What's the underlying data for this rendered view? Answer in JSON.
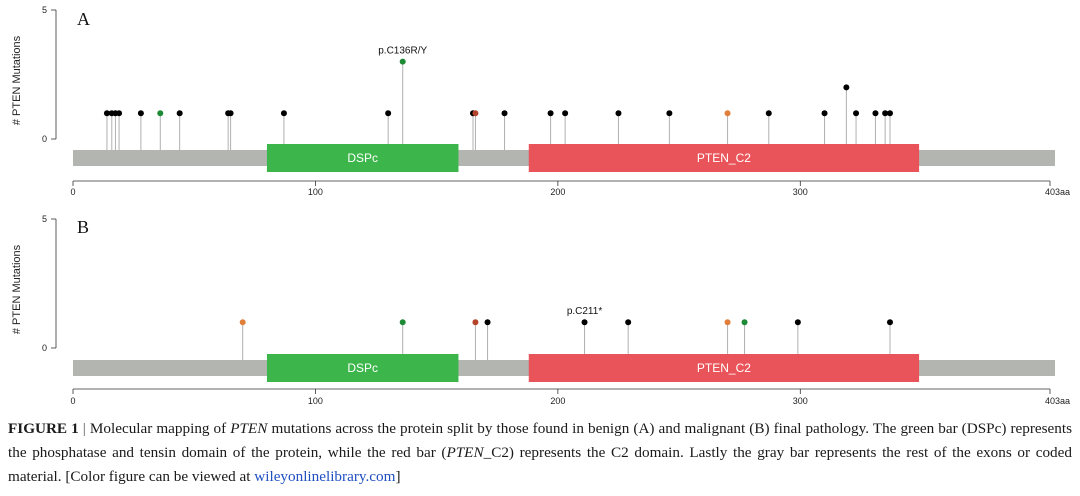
{
  "chart_data": [
    {
      "type": "lollipop",
      "panel": "A",
      "ylabel": "# PTEN Mutations",
      "yticks": [
        "0",
        "5"
      ],
      "ylim": [
        0,
        5
      ],
      "xlim": [
        0,
        403
      ],
      "xticks": [
        {
          "value": 0,
          "label": "0"
        },
        {
          "value": 100,
          "label": "100"
        },
        {
          "value": 200,
          "label": "200"
        },
        {
          "value": 300,
          "label": "300"
        },
        {
          "value": 403,
          "label": "403aa"
        }
      ],
      "domains": [
        {
          "name": "DSPc",
          "start": 80,
          "end": 159,
          "color": "#3cb64a"
        },
        {
          "name": "PTEN_C2",
          "start": 188,
          "end": 349,
          "color": "#e9545a"
        }
      ],
      "mutations": [
        {
          "pos": 14,
          "count": 1,
          "color": "#000000"
        },
        {
          "pos": 16,
          "count": 1,
          "color": "#000000"
        },
        {
          "pos": 17.5,
          "count": 1,
          "color": "#000000"
        },
        {
          "pos": 19,
          "count": 1,
          "color": "#000000"
        },
        {
          "pos": 28,
          "count": 1,
          "color": "#000000"
        },
        {
          "pos": 36,
          "count": 1,
          "color": "#1e8a36"
        },
        {
          "pos": 44,
          "count": 1,
          "color": "#000000"
        },
        {
          "pos": 64,
          "count": 1,
          "color": "#000000"
        },
        {
          "pos": 65,
          "count": 1,
          "color": "#000000"
        },
        {
          "pos": 87,
          "count": 1,
          "color": "#000000"
        },
        {
          "pos": 130,
          "count": 1,
          "color": "#000000"
        },
        {
          "pos": 136,
          "count": 3,
          "color": "#1e8a36",
          "label": "p.C136R/Y"
        },
        {
          "pos": 165,
          "count": 1,
          "color": "#000000"
        },
        {
          "pos": 166,
          "count": 1,
          "color": "#b5452a"
        },
        {
          "pos": 178,
          "count": 1,
          "color": "#000000"
        },
        {
          "pos": 197,
          "count": 1,
          "color": "#000000"
        },
        {
          "pos": 203,
          "count": 1,
          "color": "#000000"
        },
        {
          "pos": 225,
          "count": 1,
          "color": "#000000"
        },
        {
          "pos": 246,
          "count": 1,
          "color": "#000000"
        },
        {
          "pos": 270,
          "count": 1,
          "color": "#e07f3c"
        },
        {
          "pos": 287,
          "count": 1,
          "color": "#000000"
        },
        {
          "pos": 310,
          "count": 1,
          "color": "#000000"
        },
        {
          "pos": 319,
          "count": 2,
          "color": "#000000"
        },
        {
          "pos": 323,
          "count": 1,
          "color": "#000000"
        },
        {
          "pos": 331,
          "count": 1,
          "color": "#000000"
        },
        {
          "pos": 335,
          "count": 1,
          "color": "#000000"
        },
        {
          "pos": 337,
          "count": 1,
          "color": "#000000"
        }
      ]
    },
    {
      "type": "lollipop",
      "panel": "B",
      "ylabel": "# PTEN Mutations",
      "yticks": [
        "0",
        "5"
      ],
      "ylim": [
        0,
        5
      ],
      "xlim": [
        0,
        403
      ],
      "xticks": [
        {
          "value": 0,
          "label": "0"
        },
        {
          "value": 100,
          "label": "100"
        },
        {
          "value": 200,
          "label": "200"
        },
        {
          "value": 300,
          "label": "300"
        },
        {
          "value": 403,
          "label": "403aa"
        }
      ],
      "domains": [
        {
          "name": "DSPc",
          "start": 80,
          "end": 159,
          "color": "#3cb64a"
        },
        {
          "name": "PTEN_C2",
          "start": 188,
          "end": 349,
          "color": "#e9545a"
        }
      ],
      "mutations": [
        {
          "pos": 70,
          "count": 1,
          "color": "#e07f3c"
        },
        {
          "pos": 136,
          "count": 1,
          "color": "#1e8a36"
        },
        {
          "pos": 166,
          "count": 1,
          "color": "#b5452a"
        },
        {
          "pos": 171,
          "count": 1,
          "color": "#000000"
        },
        {
          "pos": 211,
          "count": 1,
          "color": "#000000",
          "label": "p.C211*"
        },
        {
          "pos": 229,
          "count": 1,
          "color": "#000000"
        },
        {
          "pos": 270,
          "count": 1,
          "color": "#e07f3c"
        },
        {
          "pos": 277,
          "count": 1,
          "color": "#1e8a36"
        },
        {
          "pos": 299,
          "count": 1,
          "color": "#000000"
        },
        {
          "pos": 337,
          "count": 1,
          "color": "#000000"
        }
      ]
    }
  ],
  "caption": {
    "label": "FIGURE 1",
    "separator": "|",
    "text_1": "Molecular mapping of ",
    "gene_italic": "PTEN",
    "text_2": " mutations across the protein split by those found in benign (A) and malignant (B) final pathology. The green bar (DSPc) represents the phosphatase and tensin domain of the protein, while the red bar (",
    "domain_italic": "PTEN",
    "domain_suffix": "_C2) represents the C2 domain. Lastly the gray bar represents the rest of the exons or coded material. [Color figure can be viewed at ",
    "link": "wileyonlinelibrary.com",
    "text_end": "]"
  },
  "colors": {
    "backbone": "#b2b5b0",
    "stem": "#b0b0b0",
    "axis": "#333333"
  }
}
